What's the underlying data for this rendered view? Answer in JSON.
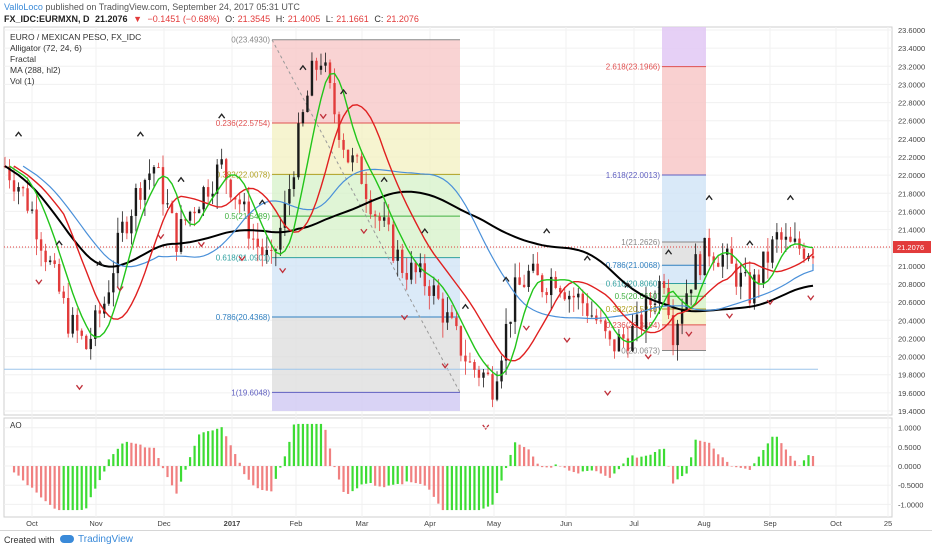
{
  "header": {
    "brand": "ValloLoco",
    "published": "published on TradingView.com, September 24, 2017 05:31 UTC",
    "symbol": "FX_IDC:EURMXN, D",
    "last": "21.2076",
    "change": "−0.1451 (−0.68%)",
    "open_label": "O:",
    "open": "21.3545",
    "high_label": "H:",
    "high": "21.4005",
    "low_label": "L:",
    "low": "21.1661",
    "close_label": "C:",
    "close": "21.2076"
  },
  "legend": {
    "title": "EURO / MEXICAN PESO, FX_IDC",
    "items": [
      "Alligator (72, 24, 6)",
      "Fractal",
      "MA (288, hl2)",
      "Vol (1)"
    ]
  },
  "oscillator_label": "AO",
  "footer": {
    "created_with": "Created with",
    "brand": "TradingView"
  },
  "colors": {
    "up": "#1a1a1a",
    "down": "#e23b3b",
    "ma_black": "#000000",
    "alligator_jaw": "#4a90d9",
    "alligator_teeth": "#e02020",
    "alligator_lips": "#22c51a",
    "ao_up": "#3ddc34",
    "ao_down": "#f08080",
    "price_line": "#e23b3b",
    "fib_red": "#f7c4c4",
    "fib_yellow": "#f3f0c0",
    "fib_green": "#d6f2c8",
    "fib_blue": "#cfe3f6",
    "fib_gray": "#dcdcdc",
    "fib_purple": "#cfc8f2"
  },
  "chart_data": {
    "type": "candlestick",
    "x_ticks": [
      "Oct",
      "Nov",
      "Dec",
      "2017",
      "Feb",
      "Mar",
      "Apr",
      "May",
      "Jun",
      "Jul",
      "Aug",
      "Sep",
      "Oct",
      "25"
    ],
    "y_ticks": [
      "23.6000",
      "23.4000",
      "23.2000",
      "23.0000",
      "22.8000",
      "22.6000",
      "22.4000",
      "22.2000",
      "22.0000",
      "21.8000",
      "21.6000",
      "21.4000",
      "21.2000",
      "21.0000",
      "20.8000",
      "20.6000",
      "20.4000",
      "20.2000",
      "20.0000",
      "19.8000",
      "19.6000",
      "19.4000"
    ],
    "ylim": [
      19.4,
      23.6
    ],
    "last_price": "21.2076",
    "ao_ticks": [
      "1.0000",
      "0.5000",
      "0.0000",
      "-0.5000",
      "-1.0000"
    ],
    "ao_ylim": [
      -1.2,
      1.15
    ],
    "fib_retracement": {
      "labels": [
        "0(23.4930)",
        "0.236(22.5754)",
        "0.382(22.0078)",
        "0.5(21.5489)",
        "0.618(21.0901)",
        "0.786(20.4368)",
        "1(19.6048)"
      ],
      "levels": [
        23.493,
        22.5754,
        22.0078,
        21.5489,
        21.0901,
        20.4368,
        19.6048
      ]
    },
    "fib_extension": {
      "labels": [
        "2.618(23.1966)",
        "1.618(22.0013)",
        "1(21.2626)",
        "0.786(21.0068)",
        "0.618(20.8060)",
        "0.5(20.6650)",
        "0.382(20.5240)",
        "0.236(20.3494)",
        "0(20.0673)"
      ],
      "levels": [
        23.1966,
        22.0013,
        21.2626,
        21.0068,
        20.806,
        20.665,
        20.524,
        20.3494,
        20.0673
      ]
    },
    "close_path": [
      [
        0,
        22.1
      ],
      [
        6,
        21.9
      ],
      [
        12,
        21.6
      ],
      [
        20,
        21.0
      ],
      [
        28,
        20.4
      ],
      [
        36,
        20.1
      ],
      [
        44,
        20.6
      ],
      [
        52,
        21.4
      ],
      [
        60,
        21.9
      ],
      [
        66,
        22.1
      ],
      [
        70,
        21.8
      ],
      [
        76,
        21.3
      ],
      [
        82,
        21.6
      ],
      [
        90,
        21.9
      ],
      [
        96,
        22.1
      ],
      [
        104,
        21.7
      ],
      [
        110,
        21.3
      ],
      [
        118,
        21.0
      ],
      [
        124,
        21.6
      ],
      [
        130,
        22.4
      ],
      [
        136,
        23.1
      ],
      [
        140,
        23.3
      ],
      [
        146,
        22.7
      ],
      [
        152,
        22.2
      ],
      [
        158,
        22.0
      ],
      [
        164,
        21.6
      ],
      [
        170,
        21.3
      ],
      [
        176,
        21.0
      ],
      [
        182,
        20.9
      ],
      [
        188,
        20.8
      ],
      [
        194,
        20.5
      ],
      [
        200,
        20.2
      ],
      [
        206,
        19.9
      ],
      [
        212,
        19.8
      ],
      [
        216,
        19.7
      ],
      [
        220,
        20.1
      ],
      [
        226,
        20.7
      ],
      [
        232,
        20.9
      ],
      [
        238,
        20.8
      ],
      [
        244,
        20.9
      ],
      [
        250,
        20.7
      ],
      [
        256,
        20.6
      ],
      [
        262,
        20.4
      ],
      [
        268,
        20.1
      ],
      [
        274,
        20.2
      ],
      [
        280,
        20.3
      ],
      [
        286,
        20.6
      ],
      [
        292,
        20.9
      ],
      [
        296,
        20.3
      ],
      [
        300,
        20.6
      ],
      [
        306,
        21.0
      ],
      [
        312,
        21.2
      ],
      [
        318,
        21.1
      ],
      [
        324,
        20.9
      ],
      [
        330,
        20.7
      ],
      [
        336,
        21.0
      ],
      [
        342,
        21.3
      ],
      [
        348,
        21.2
      ],
      [
        354,
        21.2
      ],
      [
        358,
        21.2
      ]
    ]
  }
}
